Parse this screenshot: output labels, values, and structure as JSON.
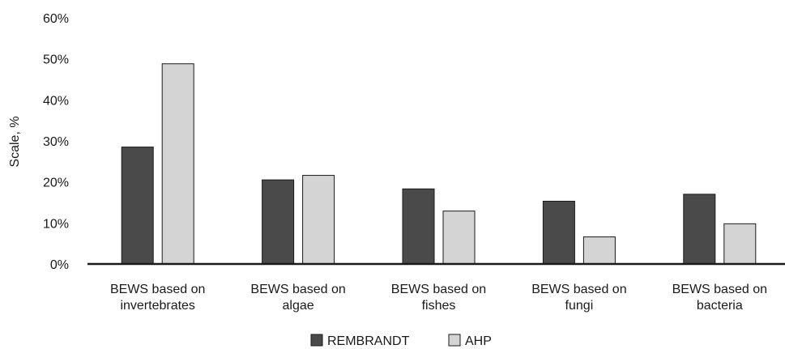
{
  "chart_data": {
    "type": "bar",
    "ylabel": "Scale, %",
    "ylim": [
      0,
      60
    ],
    "yticks": [
      0,
      10,
      20,
      30,
      40,
      50,
      60
    ],
    "ytick_suffix": "%",
    "grid": false,
    "legend_position": "bottom-center",
    "categories": [
      [
        "BEWS based on",
        "invertebrates"
      ],
      [
        "BEWS based on",
        "algae"
      ],
      [
        "BEWS based on",
        "fishes"
      ],
      [
        "BEWS based on",
        "fungi"
      ],
      [
        "BEWS based on",
        "bacteria"
      ]
    ],
    "series": [
      {
        "name": "REMBRANDT",
        "color": "#4a4a4a",
        "values": [
          28.5,
          20.5,
          18.3,
          15.3,
          17.0
        ]
      },
      {
        "name": "AHP",
        "color": "#d4d4d4",
        "values": [
          48.8,
          21.6,
          12.9,
          6.6,
          9.8
        ]
      }
    ]
  }
}
